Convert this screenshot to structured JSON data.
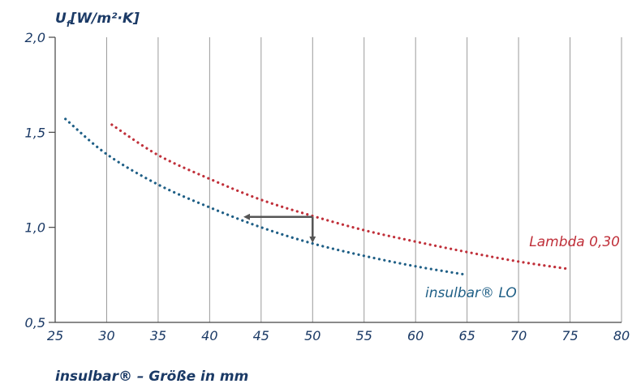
{
  "chart_data": {
    "type": "line",
    "ylabel_main": "U",
    "ylabel_sub": "f",
    "ylabel_unit": "[W/m²·K]",
    "xlabel": "insulbar® – Größe in mm",
    "xlim": [
      25,
      80
    ],
    "ylim": [
      0.5,
      2.0
    ],
    "x_ticks": [
      25,
      30,
      35,
      40,
      45,
      50,
      55,
      60,
      65,
      70,
      75,
      80
    ],
    "y_ticks": [
      {
        "value": 0.5,
        "label": "0,5"
      },
      {
        "value": 1.0,
        "label": "1,0"
      },
      {
        "value": 1.5,
        "label": "1,5"
      },
      {
        "value": 2.0,
        "label": "2,0"
      }
    ],
    "grid": "vertical",
    "series": [
      {
        "name": "insulbar® LO",
        "color": "#1f5f86",
        "style": "dotted",
        "x": [
          26,
          30,
          35,
          40,
          45,
          50,
          55,
          60,
          65
        ],
        "y": [
          1.57,
          1.385,
          1.225,
          1.105,
          1.0,
          0.915,
          0.85,
          0.795,
          0.75
        ]
      },
      {
        "name": "Lambda 0,30",
        "color": "#c0303a",
        "style": "dotted",
        "x": [
          30.5,
          35,
          40,
          45,
          50,
          55,
          60,
          65,
          70,
          75
        ],
        "y": [
          1.54,
          1.38,
          1.255,
          1.145,
          1.06,
          0.985,
          0.925,
          0.87,
          0.82,
          0.78
        ]
      }
    ],
    "annotations": [
      {
        "type": "arrow",
        "from": [
          50,
          1.055
        ],
        "to": [
          50,
          0.935
        ],
        "color": "#555555"
      },
      {
        "type": "arrow",
        "from": [
          50,
          1.055
        ],
        "to": [
          43.6,
          1.055
        ],
        "color": "#555555"
      }
    ]
  }
}
